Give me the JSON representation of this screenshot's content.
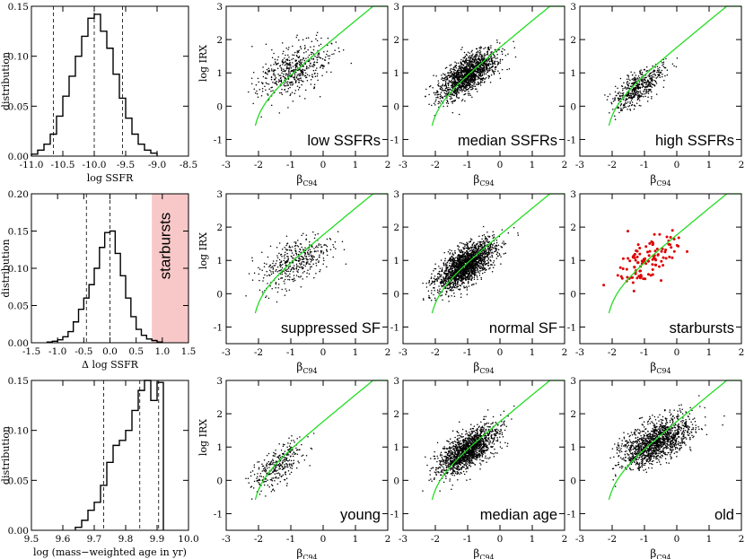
{
  "figure": {
    "hist_ylabel": "distribution",
    "scatter_ylabel": "log IRX",
    "scatter_xlabel_main": "β",
    "scatter_xlabel_sub": "C94",
    "colors": {
      "curve": "#22dd22",
      "points": "#000000",
      "highlight_points": "#dd0000",
      "shade": "#f8c8c8",
      "shade_text": "#ffffff"
    }
  },
  "chart_data": [
    {
      "id": "hist-ssfr",
      "type": "histogram",
      "xlabel": "log SSFR",
      "ylabel": "distribution",
      "xlim": [
        -11.0,
        -8.5
      ],
      "ylim": [
        0.0,
        0.15
      ],
      "xticks": [
        "-11.0",
        "-10.5",
        "-10.0",
        "-9.5",
        "-9.0",
        "-8.5"
      ],
      "yticks": [
        "0.00",
        "0.05",
        "0.10",
        "0.15"
      ],
      "bin_edges": [
        -11.0,
        -10.9,
        -10.8,
        -10.7,
        -10.6,
        -10.5,
        -10.4,
        -10.3,
        -10.2,
        -10.1,
        -10.0,
        -9.9,
        -9.8,
        -9.7,
        -9.6,
        -9.5,
        -9.4,
        -9.3,
        -9.2,
        -9.1,
        -9.0
      ],
      "values": [
        0.002,
        0.006,
        0.012,
        0.022,
        0.04,
        0.06,
        0.08,
        0.1,
        0.12,
        0.138,
        0.142,
        0.125,
        0.108,
        0.082,
        0.058,
        0.038,
        0.022,
        0.012,
        0.006,
        0.003
      ],
      "dashed_lines": [
        -10.65,
        -10.0,
        -9.55
      ]
    },
    {
      "id": "hist-dssfr",
      "type": "histogram",
      "xlabel": "Δ log SSFR",
      "ylabel": "distribution",
      "xlim": [
        -1.5,
        1.5
      ],
      "ylim": [
        0.0,
        0.2
      ],
      "xticks": [
        "-1.5",
        "-1.0",
        "-0.5",
        "0.0",
        "0.5",
        "1.0",
        "1.5"
      ],
      "yticks": [
        "0.00",
        "0.05",
        "0.10",
        "0.15",
        "0.20"
      ],
      "bin_edges": [
        -1.2,
        -1.1,
        -1.0,
        -0.9,
        -0.8,
        -0.7,
        -0.6,
        -0.5,
        -0.4,
        -0.3,
        -0.2,
        -0.1,
        0.0,
        0.1,
        0.2,
        0.3,
        0.4,
        0.5,
        0.6,
        0.7,
        0.8,
        0.9,
        1.0
      ],
      "values": [
        0.001,
        0.002,
        0.004,
        0.008,
        0.015,
        0.028,
        0.045,
        0.06,
        0.078,
        0.1,
        0.128,
        0.148,
        0.15,
        0.12,
        0.09,
        0.06,
        0.035,
        0.018,
        0.01,
        0.005,
        0.003,
        0.001
      ],
      "dashed_lines": [
        -0.45,
        0.0
      ],
      "shaded_region": {
        "from": 0.8,
        "to": 1.5,
        "label": "starbursts"
      }
    },
    {
      "id": "hist-age",
      "type": "histogram",
      "xlabel": "log (mass−weighted age in yr)",
      "ylabel": "distribution",
      "xlim": [
        9.5,
        10.0
      ],
      "ylim": [
        0.0,
        0.15
      ],
      "xticks": [
        "9.5",
        "9.6",
        "9.7",
        "9.8",
        "9.9",
        "10.0"
      ],
      "yticks": [
        "0.00",
        "0.05",
        "0.10",
        "0.15"
      ],
      "bin_edges": [
        9.64,
        9.66,
        9.68,
        9.7,
        9.72,
        9.74,
        9.76,
        9.78,
        9.8,
        9.82,
        9.84,
        9.86,
        9.88,
        9.9,
        9.92
      ],
      "values": [
        0.003,
        0.01,
        0.02,
        0.028,
        0.045,
        0.068,
        0.085,
        0.09,
        0.1,
        0.12,
        0.14,
        0.15,
        0.13,
        0.148
      ],
      "dashed_lines": [
        9.73,
        9.845,
        9.905
      ]
    },
    {
      "id": "sc-low-ssfr",
      "type": "scatter",
      "label": "low SSFRs",
      "n": 520,
      "center": [
        -0.9,
        1.05
      ],
      "spread": [
        0.55,
        0.5
      ],
      "tilt": 0.35,
      "xlim": [
        -3,
        2
      ],
      "ylim": [
        -1.5,
        3
      ],
      "xticks": [
        "-3",
        "-2",
        "-1",
        "0",
        "1",
        "2"
      ],
      "yticks": [
        "-1",
        "0",
        "1",
        "2",
        "3"
      ],
      "point_color": "#000000"
    },
    {
      "id": "sc-median-ssfr",
      "type": "scatter",
      "label": "median SSFRs",
      "n": 1500,
      "center": [
        -1.0,
        0.95
      ],
      "spread": [
        0.45,
        0.35
      ],
      "tilt": 0.55,
      "xlim": [
        -3,
        2
      ],
      "ylim": [
        -1.5,
        3
      ],
      "xticks": [
        "-3",
        "-2",
        "-1",
        "0",
        "1",
        "2"
      ],
      "yticks": [
        "-1",
        "0",
        "1",
        "2",
        "3"
      ],
      "point_color": "#000000"
    },
    {
      "id": "sc-high-ssfr",
      "type": "scatter",
      "label": "high SSFRs",
      "n": 520,
      "center": [
        -1.2,
        0.55
      ],
      "spread": [
        0.4,
        0.3
      ],
      "tilt": 0.6,
      "xlim": [
        -3,
        2
      ],
      "ylim": [
        -1.5,
        3
      ],
      "xticks": [
        "-3",
        "-2",
        "-1",
        "0",
        "1",
        "2"
      ],
      "yticks": [
        "-1",
        "0",
        "1",
        "2",
        "3"
      ],
      "point_color": "#000000"
    },
    {
      "id": "sc-suppressed",
      "type": "scatter",
      "label": "suppressed SF",
      "n": 420,
      "center": [
        -0.85,
        1.0
      ],
      "spread": [
        0.55,
        0.45
      ],
      "tilt": 0.4,
      "xlim": [
        -3,
        2
      ],
      "ylim": [
        -1.5,
        3
      ],
      "xticks": [
        "-3",
        "-2",
        "-1",
        "0",
        "1",
        "2"
      ],
      "yticks": [
        "-1",
        "0",
        "1",
        "2",
        "3"
      ],
      "point_color": "#000000"
    },
    {
      "id": "sc-normal",
      "type": "scatter",
      "label": "normal SF",
      "n": 1900,
      "center": [
        -1.05,
        0.85
      ],
      "spread": [
        0.45,
        0.35
      ],
      "tilt": 0.55,
      "xlim": [
        -3,
        2
      ],
      "ylim": [
        -1.5,
        3
      ],
      "xticks": [
        "-3",
        "-2",
        "-1",
        "0",
        "1",
        "2"
      ],
      "yticks": [
        "-1",
        "0",
        "1",
        "2",
        "3"
      ],
      "point_color": "#000000"
    },
    {
      "id": "sc-starbursts",
      "type": "scatter",
      "label": "starbursts",
      "n": 110,
      "center": [
        -0.9,
        1.05
      ],
      "spread": [
        0.5,
        0.45
      ],
      "tilt": 0.5,
      "xlim": [
        -3,
        2
      ],
      "ylim": [
        -1.5,
        3
      ],
      "xticks": [
        "-3",
        "-2",
        "-1",
        "0",
        "1",
        "2"
      ],
      "yticks": [
        "-1",
        "0",
        "1",
        "2",
        "3"
      ],
      "point_color": "#dd0000"
    },
    {
      "id": "sc-young",
      "type": "scatter",
      "label": "young",
      "n": 320,
      "center": [
        -1.4,
        0.45
      ],
      "spread": [
        0.4,
        0.35
      ],
      "tilt": 0.55,
      "xlim": [
        -3,
        2
      ],
      "ylim": [
        -1.5,
        3
      ],
      "xticks": [
        "-3",
        "-2",
        "-1",
        "0",
        "1",
        "2"
      ],
      "yticks": [
        "-1",
        "0",
        "1",
        "2",
        "3"
      ],
      "point_color": "#000000"
    },
    {
      "id": "sc-median-age",
      "type": "scatter",
      "label": "median age",
      "n": 1500,
      "center": [
        -1.0,
        0.9
      ],
      "spread": [
        0.45,
        0.35
      ],
      "tilt": 0.55,
      "xlim": [
        -3,
        2
      ],
      "ylim": [
        -1.5,
        3
      ],
      "xticks": [
        "-3",
        "-2",
        "-1",
        "0",
        "1",
        "2"
      ],
      "yticks": [
        "-1",
        "0",
        "1",
        "2",
        "3"
      ],
      "point_color": "#000000"
    },
    {
      "id": "sc-old",
      "type": "scatter",
      "label": "old",
      "n": 1400,
      "center": [
        -0.65,
        1.15
      ],
      "spread": [
        0.55,
        0.4
      ],
      "tilt": 0.4,
      "xlim": [
        -3,
        2
      ],
      "ylim": [
        -1.5,
        3
      ],
      "xticks": [
        "-3",
        "-2",
        "-1",
        "0",
        "1",
        "2"
      ],
      "yticks": [
        "-1",
        "0",
        "1",
        "2",
        "3"
      ],
      "point_color": "#000000"
    }
  ]
}
